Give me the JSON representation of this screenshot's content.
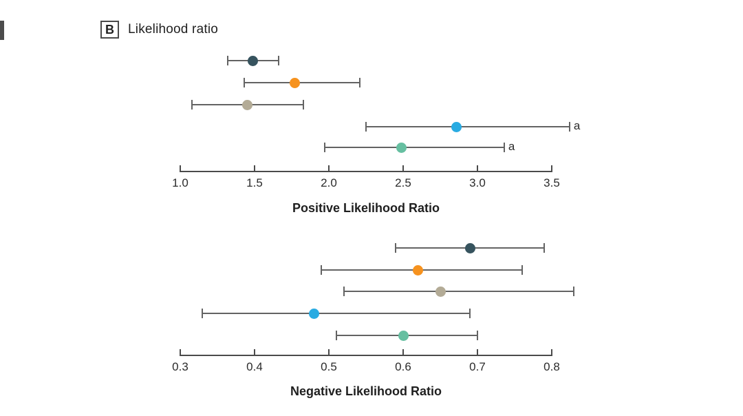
{
  "header": {
    "panel_letter": "B",
    "panel_title": "Likelihood ratio"
  },
  "colors": {
    "navy": "#36535E",
    "orange": "#F6921E",
    "tan": "#B3AB96",
    "cyan": "#29ABE2",
    "green": "#66BFA1",
    "axis": "#4a4a4a",
    "error_bar": "#636363",
    "text": "#2b2b2b"
  },
  "chart_data": [
    {
      "type": "scatter",
      "subtype": "forest-plot",
      "xlabel": "Positive Likelihood Ratio",
      "xlim": [
        1.0,
        3.5
      ],
      "tick_values": [
        1.0,
        1.5,
        2.0,
        2.5,
        3.0,
        3.5
      ],
      "tick_labels": [
        "1.0",
        "1.5",
        "2.0",
        "2.5",
        "3.0",
        "3.5"
      ],
      "grid": false,
      "legend": "none",
      "series": [
        {
          "color": "navy",
          "value": 1.49,
          "ci_low": 1.32,
          "ci_high": 1.66,
          "annotation": ""
        },
        {
          "color": "orange",
          "value": 1.77,
          "ci_low": 1.43,
          "ci_high": 2.21,
          "annotation": ""
        },
        {
          "color": "tan",
          "value": 1.45,
          "ci_low": 1.08,
          "ci_high": 1.83,
          "annotation": ""
        },
        {
          "color": "cyan",
          "value": 2.86,
          "ci_low": 2.25,
          "ci_high": 3.62,
          "annotation": "a"
        },
        {
          "color": "green",
          "value": 2.49,
          "ci_low": 1.97,
          "ci_high": 3.18,
          "annotation": "a"
        }
      ]
    },
    {
      "type": "scatter",
      "subtype": "forest-plot",
      "xlabel": "Negative Likelihood Ratio",
      "xlim": [
        0.3,
        0.8
      ],
      "tick_values": [
        0.3,
        0.4,
        0.5,
        0.6,
        0.7,
        0.8
      ],
      "tick_labels": [
        "0.3",
        "0.4",
        "0.5",
        "0.6",
        "0.7",
        "0.8"
      ],
      "grid": false,
      "legend": "none",
      "series": [
        {
          "color": "navy",
          "value": 0.69,
          "ci_low": 0.59,
          "ci_high": 0.79,
          "annotation": ""
        },
        {
          "color": "orange",
          "value": 0.62,
          "ci_low": 0.49,
          "ci_high": 0.76,
          "annotation": ""
        },
        {
          "color": "tan",
          "value": 0.65,
          "ci_low": 0.52,
          "ci_high": 0.83,
          "annotation": ""
        },
        {
          "color": "cyan",
          "value": 0.48,
          "ci_low": 0.33,
          "ci_high": 0.69,
          "annotation": ""
        },
        {
          "color": "green",
          "value": 0.6,
          "ci_low": 0.51,
          "ci_high": 0.7,
          "annotation": ""
        }
      ]
    }
  ]
}
